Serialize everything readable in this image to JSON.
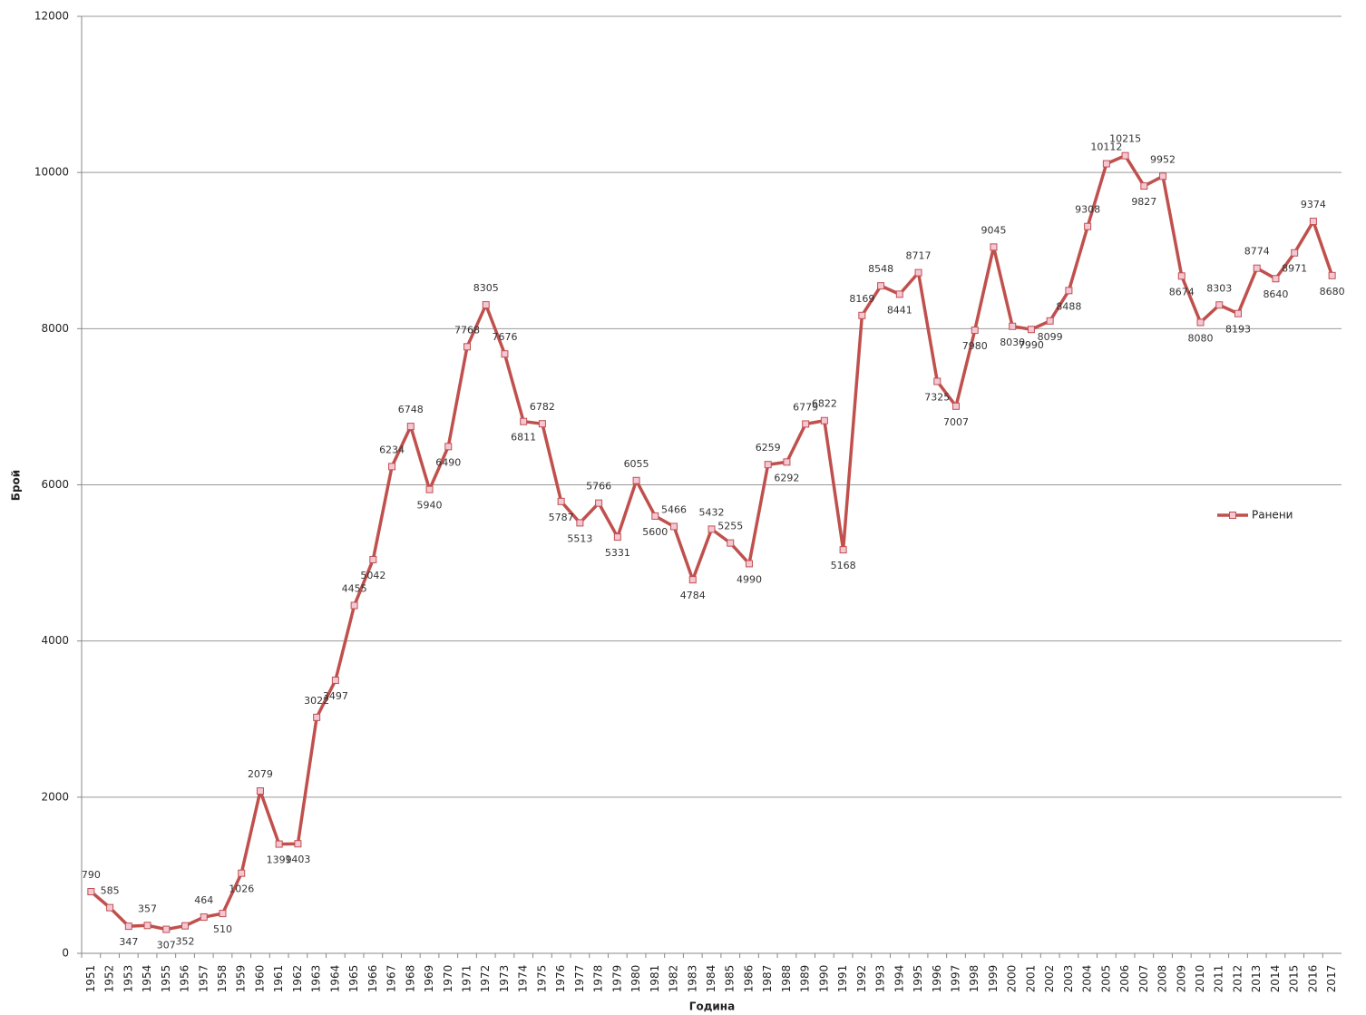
{
  "chart_data": {
    "type": "line",
    "xlabel": "Година",
    "ylabel": "Брой",
    "categories": [
      "1951",
      "1952",
      "1953",
      "1954",
      "1955",
      "1956",
      "1957",
      "1958",
      "1959",
      "1960",
      "1961",
      "1962",
      "1963",
      "1964",
      "1965",
      "1966",
      "1967",
      "1968",
      "1969",
      "1970",
      "1971",
      "1972",
      "1973",
      "1974",
      "1975",
      "1976",
      "1977",
      "1978",
      "1979",
      "1980",
      "1981",
      "1982",
      "1983",
      "1984",
      "1985",
      "1986",
      "1987",
      "1988",
      "1989",
      "1990",
      "1991",
      "1992",
      "1993",
      "1994",
      "1995",
      "1996",
      "1997",
      "1998",
      "1999",
      "2000",
      "2001",
      "2002",
      "2003",
      "2004",
      "2005",
      "2006",
      "2007",
      "2008",
      "2009",
      "2010",
      "2011",
      "2012",
      "2013",
      "2014",
      "2015",
      "2016",
      "2017"
    ],
    "series": [
      {
        "name": "Ранени",
        "color": "#c0504d",
        "values": [
          790,
          585,
          347,
          357,
          307,
          352,
          464,
          510,
          1026,
          2079,
          1399,
          1403,
          3022,
          3497,
          4455,
          5042,
          6234,
          6748,
          5940,
          6490,
          7768,
          8305,
          7676,
          6811,
          6782,
          5787,
          5513,
          5766,
          5331,
          6055,
          5600,
          5466,
          4784,
          5432,
          5255,
          4990,
          6259,
          6292,
          6779,
          6822,
          5168,
          8169,
          8548,
          8441,
          8717,
          7325,
          7007,
          7980,
          9045,
          8030,
          7990,
          8099,
          8488,
          9308,
          10112,
          10215,
          9827,
          9952,
          8674,
          8080,
          8303,
          8193,
          8774,
          8640,
          8971,
          9374,
          8680
        ]
      }
    ],
    "ylim": [
      0,
      12000
    ],
    "yticks": [
      0,
      2000,
      4000,
      6000,
      8000,
      10000,
      12000
    ],
    "grid": true,
    "legend": "right"
  }
}
